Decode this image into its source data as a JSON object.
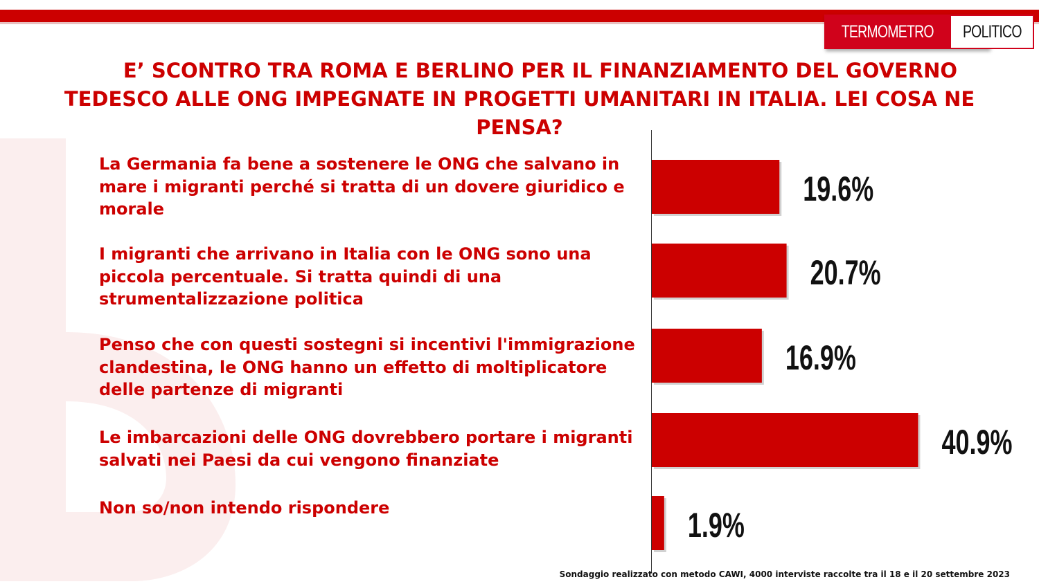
{
  "brand": {
    "logo_left": "TERMOMETRO",
    "logo_right": "POLITICO",
    "accent_color": "#cc0000"
  },
  "chart_data": {
    "type": "bar",
    "orientation": "horizontal",
    "title": "E’ SCONTRO TRA ROMA E BERLINO PER IL FINANZIAMENTO DEL GOVERNO TEDESCO ALLE ONG IMPEGNATE IN PROGETTI UMANITARI IN ITALIA. LEI COSA NE PENSA?",
    "categories": [
      "La Germania fa bene a sostenere le ONG che salvano in mare i migranti perché si tratta di un dovere giuridico e morale",
      "I migranti che arrivano in Italia con le ONG sono una piccola percentuale. Si tratta quindi di una strumentalizzazione politica",
      "Penso che con questi sostegni si incentivi l'immigrazione clandestina, le ONG hanno un effetto di moltiplicatore delle partenze di migranti",
      "Le imbarcazioni delle ONG dovrebbero portare i migranti  salvati nei Paesi da cui vengono finanziate",
      "Non so/non intendo rispondere"
    ],
    "values": [
      19.6,
      20.7,
      16.9,
      40.9,
      1.9
    ],
    "value_labels": [
      "19.6%",
      "20.7%",
      "16.9%",
      "40.9%",
      "1.9%"
    ],
    "xlim": [
      0,
      50
    ],
    "bar_color": "#cc0000",
    "grid": false,
    "legend": "none"
  },
  "footer": {
    "note": "Sondaggio realizzato con metodo CAWI, 4000 interviste raccolte tra il 18 e il 20 settembre 2023"
  }
}
